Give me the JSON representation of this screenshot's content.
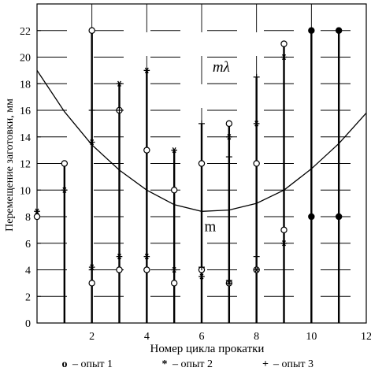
{
  "chart_data": {
    "type": "scatter",
    "xlabel": "Номер цикла прокатки",
    "ylabel": "Перемещение заготовки, мм",
    "xlim": [
      0,
      12
    ],
    "ylim": [
      0,
      24
    ],
    "xticks": [
      "2",
      "4",
      "6",
      "8",
      "10",
      "12"
    ],
    "yticks": [
      "0",
      "2",
      "4",
      "6",
      "8",
      "10",
      "12",
      "14",
      "16",
      "18",
      "20",
      "22"
    ],
    "grid": true,
    "legend_position": "bottom",
    "curve_labels": {
      "upper": "mλ",
      "lower": "m"
    },
    "boundary_curve": {
      "x": [
        0,
        1,
        2,
        3,
        4,
        5,
        6,
        7,
        8,
        9,
        10,
        11,
        12
      ],
      "y": [
        19,
        15.9,
        13.4,
        11.5,
        10,
        8.9,
        8.4,
        8.5,
        9,
        10,
        11.6,
        13.5,
        15.8
      ]
    },
    "series": [
      {
        "name": "опыт 1",
        "marker": "open-circle",
        "points": [
          [
            0,
            8
          ],
          [
            1,
            12
          ],
          [
            2,
            22
          ],
          [
            2,
            3
          ],
          [
            3,
            16
          ],
          [
            3,
            4
          ],
          [
            4,
            13
          ],
          [
            4,
            4
          ],
          [
            5,
            10
          ],
          [
            5,
            3
          ],
          [
            6,
            12
          ],
          [
            6,
            4
          ],
          [
            7,
            15
          ],
          [
            7,
            3
          ],
          [
            8,
            12
          ],
          [
            8,
            4
          ],
          [
            9,
            21
          ],
          [
            9,
            7
          ],
          [
            10,
            22
          ],
          [
            10,
            8
          ],
          [
            11,
            22
          ],
          [
            11,
            8
          ]
        ]
      },
      {
        "name": "опыт 2",
        "marker": "asterisk",
        "points": [
          [
            0,
            8.4
          ],
          [
            1,
            10
          ],
          [
            2,
            13.6
          ],
          [
            2,
            4.2
          ],
          [
            3,
            18
          ],
          [
            3,
            5
          ],
          [
            4,
            19
          ],
          [
            4,
            5
          ],
          [
            5,
            13
          ],
          [
            5,
            4
          ],
          [
            6,
            3.5
          ],
          [
            7,
            14
          ],
          [
            7,
            3
          ],
          [
            8,
            15
          ],
          [
            8,
            4
          ],
          [
            9,
            20
          ],
          [
            9,
            6
          ]
        ]
      },
      {
        "name": "опыт 3",
        "marker": "plus",
        "points": [
          [
            2,
            16
          ],
          [
            2,
            4
          ],
          [
            3,
            16
          ],
          [
            6,
            15
          ],
          [
            6,
            4.2
          ],
          [
            7,
            12.5
          ],
          [
            7,
            3.2
          ],
          [
            8,
            18.5
          ],
          [
            8,
            5
          ]
        ]
      }
    ]
  },
  "legend": {
    "items": [
      {
        "symbol": "o",
        "label": "– опыт 1"
      },
      {
        "symbol": "*",
        "label": "– опыт 2"
      },
      {
        "symbol": "+",
        "label": "– опыт 3"
      }
    ]
  }
}
